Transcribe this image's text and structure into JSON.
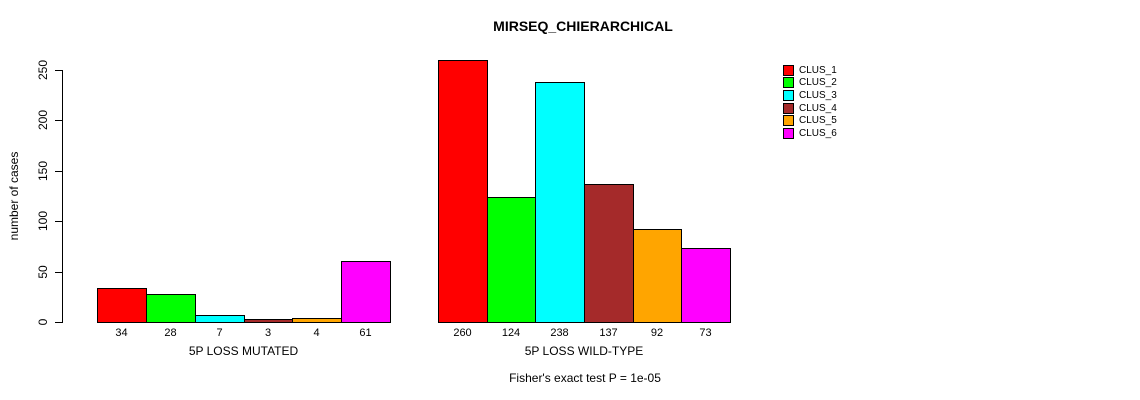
{
  "chart": {
    "title": "MIRSEQ_CHIERARCHICAL",
    "ylabel": "number of cases",
    "annotation": "Fisher's exact test P = 1e-05"
  },
  "chart_data": {
    "type": "bar",
    "title": "MIRSEQ_CHIERARCHICAL",
    "xlabel": "",
    "ylabel": "number of cases",
    "annotation": "Fisher's exact test P = 1e-05",
    "ylim": [
      0,
      260
    ],
    "yticks": [
      0,
      50,
      100,
      150,
      200,
      250
    ],
    "grid": false,
    "legend_position": "right",
    "bar_value_labels_shown": true,
    "categories": [
      "5P LOSS MUTATED",
      "5P LOSS WILD-TYPE"
    ],
    "series": [
      {
        "name": "CLUS_1",
        "color": "#FF0000",
        "values": [
          34,
          260
        ]
      },
      {
        "name": "CLUS_2",
        "color": "#00FF00",
        "values": [
          28,
          124
        ]
      },
      {
        "name": "CLUS_3",
        "color": "#00FFFF",
        "values": [
          7,
          238
        ]
      },
      {
        "name": "CLUS_4",
        "color": "#A52A2A",
        "values": [
          3,
          137
        ]
      },
      {
        "name": "CLUS_5",
        "color": "#FFA500",
        "values": [
          4,
          92
        ]
      },
      {
        "name": "CLUS_6",
        "color": "#FF00FF",
        "values": [
          61,
          73
        ]
      }
    ]
  }
}
